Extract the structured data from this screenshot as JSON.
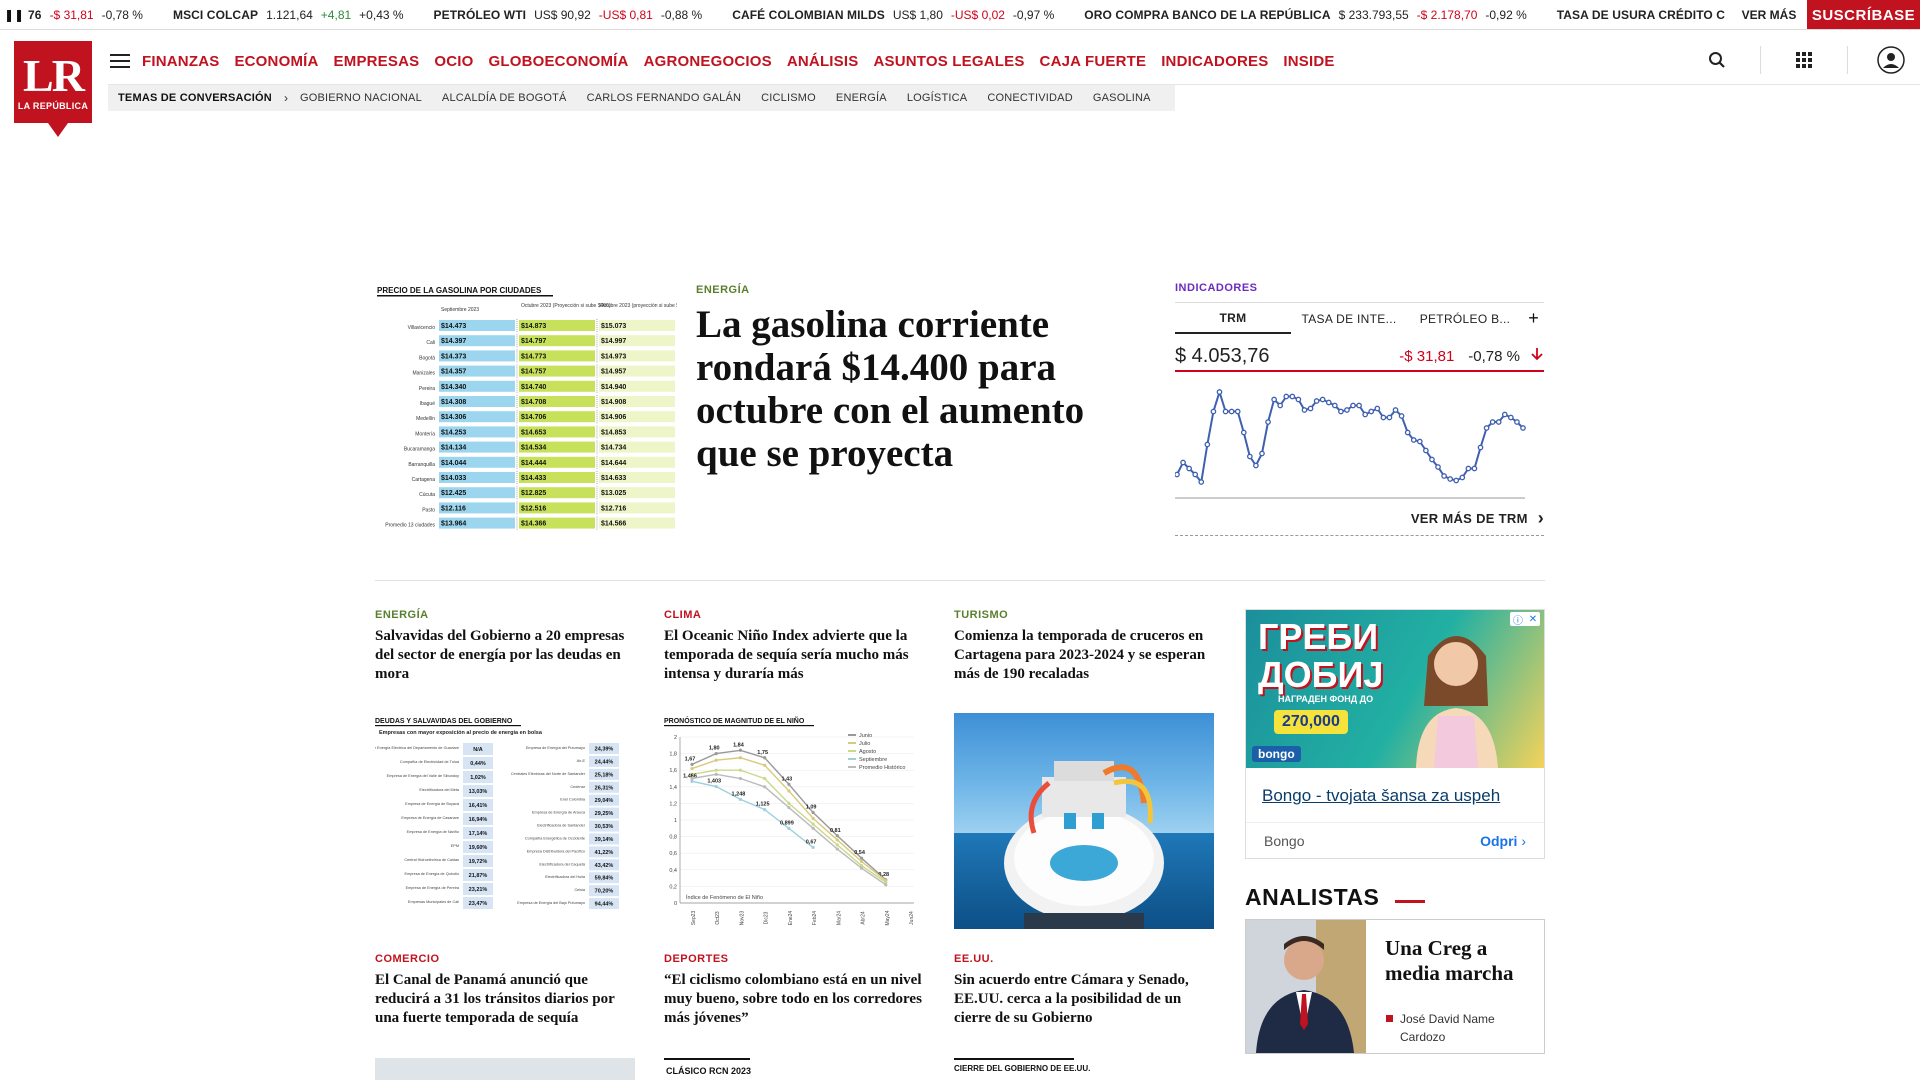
{
  "ticker": {
    "items": [
      {
        "name": "76",
        "value": "",
        "change": "-$ 31,81",
        "change_dir": "down",
        "pct": "-0,78 %"
      },
      {
        "name": "MSCI COLCAP",
        "value": "1.121,64",
        "change": "+4,81",
        "change_dir": "up",
        "pct": "+0,43 %"
      },
      {
        "name": "PETRÓLEO WTI",
        "value": "US$ 90,92",
        "change": "-US$ 0,81",
        "change_dir": "down",
        "pct": "-0,88 %"
      },
      {
        "name": "CAFÉ COLOMBIAN MILDS",
        "value": "US$ 1,80",
        "change": "-US$ 0,02",
        "change_dir": "down",
        "pct": "-0,97 %"
      },
      {
        "name": "ORO COMPRA BANCO DE LA REPÚBLICA",
        "value": "$ 233.793,55",
        "change": "-$ 2.178,70",
        "change_dir": "down",
        "pct": "-0,92 %"
      },
      {
        "name": "TASA DE USURA CRÉDITO C",
        "value": "",
        "change": "",
        "change_dir": "",
        "pct": ""
      }
    ],
    "ver_mas": "VER MÁS",
    "subscribe": "SUSCRÍBASE"
  },
  "logo": {
    "mark": "LR",
    "sub": "LA REPÚBLICA"
  },
  "nav": {
    "items": [
      "FINANZAS",
      "ECONOMÍA",
      "EMPRESAS",
      "OCIO",
      "GLOBOECONOMÍA",
      "AGRONEGOCIOS",
      "ANÁLISIS",
      "ASUNTOS LEGALES",
      "CAJA FUERTE",
      "INDICADORES",
      "INSIDE"
    ]
  },
  "topics": {
    "label": "TEMAS DE CONVERSACIÓN",
    "items": [
      "GOBIERNO NACIONAL",
      "ALCALDÍA DE BOGOTÁ",
      "CARLOS FERNANDO GALÁN",
      "CICLISMO",
      "ENERGÍA",
      "LOGÍSTICA",
      "CONECTIVIDAD",
      "GASOLINA"
    ]
  },
  "hero": {
    "category": "ENERGÍA",
    "title": "La gasolina corriente rondará $14.400 para octubre con el aumento que se proyecta",
    "image": {
      "title": "PRECIO DE LA GASOLINA POR CIUDADES",
      "col1": "Septiembre 2023",
      "col2": "Octubre 2023 (Proyección si sube $400)",
      "col3": "Octubre 2023 (proyección si sube $600)",
      "rows": [
        [
          "Villavicencio",
          "$14.473",
          "$14.873",
          "$15.073"
        ],
        [
          "Cali",
          "$14.397",
          "$14.797",
          "$14.997"
        ],
        [
          "Bogotá",
          "$14.373",
          "$14.773",
          "$14.973"
        ],
        [
          "Manizales",
          "$14.357",
          "$14.757",
          "$14.957"
        ],
        [
          "Pereira",
          "$14.340",
          "$14.740",
          "$14.940"
        ],
        [
          "Ibagué",
          "$14.308",
          "$14.708",
          "$14.908"
        ],
        [
          "Medellín",
          "$14.306",
          "$14.706",
          "$14.906"
        ],
        [
          "Montería",
          "$14.253",
          "$14.653",
          "$14.853"
        ],
        [
          "Bucaramanga",
          "$14.134",
          "$14.534",
          "$14.734"
        ],
        [
          "Barranquilla",
          "$14.044",
          "$14.444",
          "$14.644"
        ],
        [
          "Cartagena",
          "$14.033",
          "$14.433",
          "$14.633"
        ],
        [
          "Cúcuta",
          "$12.425",
          "$12.825",
          "$13.025"
        ],
        [
          "Pasto",
          "$12.116",
          "$12.516",
          "$12.716"
        ],
        [
          "Promedio 13 ciudades",
          "$13.964",
          "$14.366",
          "$14.566"
        ]
      ]
    }
  },
  "indicators": {
    "category": "INDICADORES",
    "tabs": [
      "TRM",
      "TASA DE INTE...",
      "PETRÓLEO B..."
    ],
    "plus": "+",
    "value": "$ 4.053,76",
    "change": "-$ 31,81",
    "pct": "-0,78 %",
    "more": "VER MÁS DE TRM",
    "chart_data": {
      "type": "line",
      "values": [
        30,
        38,
        34,
        30,
        25,
        50,
        72,
        85,
        72,
        72,
        72,
        58,
        42,
        36,
        44,
        65,
        80,
        76,
        82,
        82,
        80,
        73,
        74,
        79,
        80,
        78,
        76,
        72,
        73,
        76,
        76,
        70,
        72,
        74,
        68,
        68,
        73,
        69,
        58,
        53,
        52,
        46,
        40,
        35,
        29,
        27,
        26,
        28,
        34,
        34,
        48,
        61,
        65,
        65,
        70,
        68,
        65,
        61
      ]
    }
  },
  "articles": [
    {
      "category": "ENERGÍA",
      "color": "#5a7f2e",
      "title": "Salvavidas del Gobierno a 20 empresas del sector de energía por las deudas en mora"
    },
    {
      "category": "CLIMA",
      "color": "#c1121f",
      "title": "El Oceanic Niño Index advierte que la temporada de sequía sería mucho más intensa y duraría más"
    },
    {
      "category": "TURISMO",
      "color": "#5a7f2e",
      "title": "Comienza la temporada de cruceros en Cartagena para 2023-2024 y se esperan más de 190 recaladas"
    },
    {
      "category": "COMERCIO",
      "color": "#c1121f",
      "title": "El Canal de Panamá anunció que reducirá a 31 los tránsitos diarios por una fuerte temporada de sequía"
    },
    {
      "category": "DEPORTES",
      "color": "#c1121f",
      "title": "“El ciclismo colombiano está en un nivel muy bueno, sobre todo en los corredores más jóvenes”"
    },
    {
      "category": "EE.UU.",
      "color": "#c1121f",
      "title": "Sin acuerdo entre Cámara y Senado, EE.UU. cerca a la posibilidad de un cierre de su Gobierno"
    }
  ],
  "thumb_energy": {
    "title": "DEUDAS Y SALVAVIDAS DEL GOBIERNO",
    "subtitle": "Empresas con mayor exposición al precio de energía en bolsa",
    "left": [
      [
        "Empresa de Energía Eléctrica del Departamento de Guaviare",
        "N/A"
      ],
      [
        "Compañía de Electricidad de Tuluá",
        "0,44%"
      ],
      [
        "Empresa de Energía del Valle de Sibundoy",
        "1,02%"
      ],
      [
        "Electrificadora del Meta",
        "13,03%"
      ],
      [
        "Empresa de Energía de Boyacá",
        "16,41%"
      ],
      [
        "Empresa de Energía de Casanare",
        "16,94%"
      ],
      [
        "Empresa de Energía de Nariño",
        "17,14%"
      ],
      [
        "EPM",
        "19,60%"
      ],
      [
        "Central Hidroeléctrica de Caldas",
        "19,72%"
      ],
      [
        "Empresa de Energía de Quindío",
        "21,87%"
      ],
      [
        "Empresa de Energía de Pereira",
        "23,21%"
      ],
      [
        "Empresas Municipales de Cali",
        "23,47%"
      ]
    ],
    "right": [
      [
        "Empresa de Energía del Putumayo",
        "24,39%"
      ],
      [
        "Air-E",
        "24,44%"
      ],
      [
        "Centrales Eléctricas del Norte de Santander",
        "25,18%"
      ],
      [
        "Cedenar",
        "26,31%"
      ],
      [
        "Enel Colombia",
        "29,04%"
      ],
      [
        "Empresa de Energía de Arauca",
        "29,25%"
      ],
      [
        "Electrificadora de Santander",
        "30,53%"
      ],
      [
        "Compañía Energética de Occidente",
        "39,14%"
      ],
      [
        "Empresa Distribuidora del Pacífico",
        "41,22%"
      ],
      [
        "Electrificadora del Caquetá",
        "43,42%"
      ],
      [
        "Electrificadora del Huila",
        "59,84%"
      ],
      [
        "Celsia",
        "70,20%"
      ],
      [
        "Empresa de Energía del Bajo Putumayo",
        "94,44%"
      ]
    ]
  },
  "thumb_nino": {
    "chart_data": {
      "type": "line",
      "title": "PRONÓSTICO DE MAGNITUD DE EL NIÑO",
      "xlabel": "Índice de Fenómeno de El Niño",
      "ylim": [
        0,
        2
      ],
      "yticks": [
        "0",
        "0,2",
        "0,4",
        "0,6",
        "0,8",
        "1",
        "1,2",
        "1,4",
        "1,6",
        "1,8",
        "2"
      ],
      "categories": [
        "Sep23",
        "Oct23",
        "Nov23",
        "Dic23",
        "Ene24",
        "Feb24",
        "Mar24",
        "Abr24",
        "May24",
        "Jun24"
      ],
      "series": [
        {
          "name": "Junio",
          "color": "#999999",
          "values": [
            1.67,
            1.8,
            1.84,
            1.75,
            1.43,
            1.09,
            0.81,
            0.54,
            0.28,
            null
          ],
          "labels": [
            "1,67",
            "1,80",
            "1,84",
            "1,75",
            "1,43",
            "1,09",
            "0,81",
            "0,54",
            "0,28",
            ""
          ]
        },
        {
          "name": "Julio",
          "color": "#d9c97a",
          "values": [
            1.62,
            1.72,
            1.75,
            1.66,
            1.35,
            1.02,
            0.76,
            0.5,
            0.27,
            null
          ],
          "labels": []
        },
        {
          "name": "Agosto",
          "color": "#c9d98a",
          "values": [
            1.55,
            1.6,
            1.6,
            1.5,
            1.2,
            0.95,
            0.7,
            0.45,
            0.25,
            null
          ],
          "labels": []
        },
        {
          "name": "Septiembre",
          "color": "#9ccfe0",
          "values": [
            1.466,
            1.403,
            1.248,
            1.125,
            0.899,
            0.67,
            null,
            null,
            null,
            null
          ],
          "labels": [
            "1,466",
            "1,403",
            "1,248",
            "1,125",
            "0,899",
            "0,67",
            "",
            "",
            "",
            ""
          ]
        },
        {
          "name": "Promedio Histórico",
          "color": "#bbbbbb",
          "values": [
            1.5,
            1.55,
            1.5,
            1.4,
            1.15,
            0.9,
            0.65,
            0.42,
            0.22,
            null
          ],
          "labels": []
        }
      ]
    }
  },
  "ad": {
    "title_line1": "ГРЕБИ",
    "title_line2": "ДОБИЈ",
    "prize_label": "НАГРАДЕН ФОНД ДО",
    "prize": "270,000",
    "bongo": "bongo",
    "headline": "Bongo - tvojata šansa za uspeh",
    "brand": "Bongo",
    "open": "Odpri"
  },
  "analysts": {
    "title": "ANALISTAS",
    "item": {
      "title": "Una Creg a media marcha",
      "author": "José David Name Cardozo"
    }
  },
  "bottom": {
    "label2": "CLÁSICO RCN 2023",
    "label3": "CIERRE DEL GOBIERNO DE EE.UU."
  },
  "colors": {
    "brand_red": "#c1121f",
    "energy_green": "#5a7f2e",
    "indicators_purple": "#6c2bbf",
    "negative": "#d0021b",
    "positive": "#2e8b3a"
  }
}
